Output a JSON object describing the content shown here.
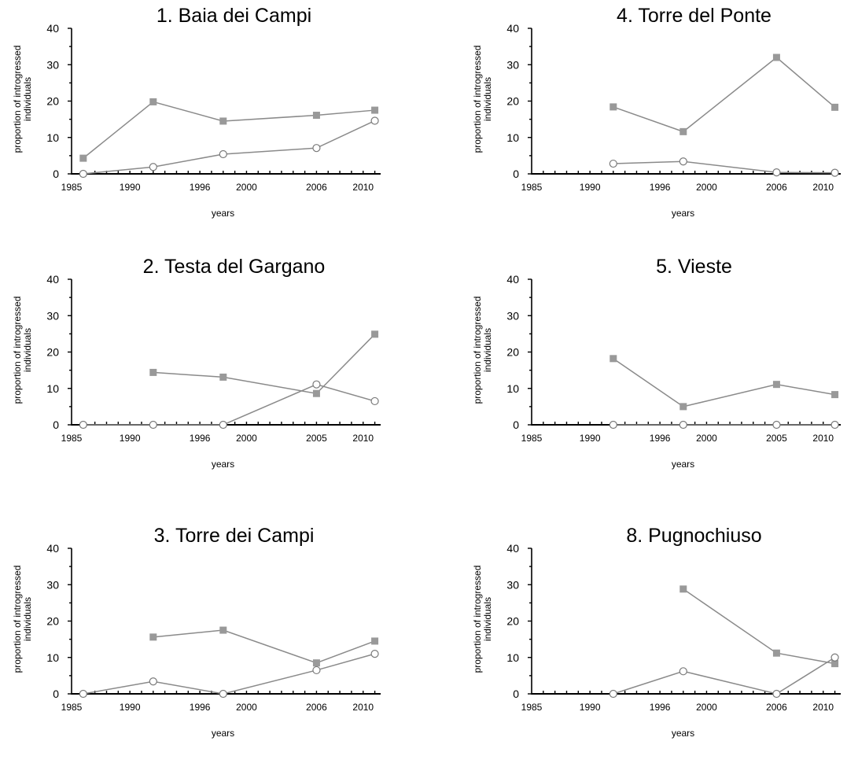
{
  "chart_data": [
    {
      "type": "line",
      "title": "1. Baia dei Campi",
      "xlabel": "years",
      "ylabel": [
        "proportion of introgressed",
        "individuals"
      ],
      "xticks": [
        "1985",
        "1990",
        "1996",
        "2000",
        "2006",
        "2010"
      ],
      "yticks": [
        "0",
        "10",
        "20",
        "30",
        "40"
      ],
      "ylim": [
        0,
        40
      ],
      "series": [
        {
          "marker": "square",
          "color": "#999999",
          "x": [
            1986,
            1992,
            1998,
            2006,
            2011
          ],
          "y": [
            4.3,
            19.8,
            14.5,
            16.1,
            17.5
          ]
        },
        {
          "marker": "circle",
          "color": "#999999",
          "x": [
            1986,
            1992,
            1998,
            2006,
            2011
          ],
          "y": [
            0,
            1.9,
            5.4,
            7.1,
            14.6
          ]
        }
      ]
    },
    {
      "type": "line",
      "title": "4. Torre del Ponte",
      "xlabel": "years",
      "ylabel": [
        "proportion of introgressed",
        "individuals"
      ],
      "xticks": [
        "1985",
        "1990",
        "1996",
        "2000",
        "2006",
        "2010"
      ],
      "yticks": [
        "0",
        "10",
        "20",
        "30",
        "40"
      ],
      "ylim": [
        0,
        40
      ],
      "series": [
        {
          "marker": "square",
          "color": "#999999",
          "x": [
            1992,
            1998,
            2006,
            2011
          ],
          "y": [
            18.4,
            11.6,
            32.0,
            18.3
          ]
        },
        {
          "marker": "circle",
          "color": "#999999",
          "x": [
            1992,
            1998,
            2006,
            2011
          ],
          "y": [
            2.8,
            3.4,
            0.4,
            0.3
          ]
        }
      ]
    },
    {
      "type": "line",
      "title": "2. Testa del Gargano",
      "xlabel": "years",
      "ylabel": [
        "proportion of introgressed",
        "individuals"
      ],
      "xticks": [
        "1985",
        "1990",
        "1996",
        "2000",
        "2005",
        "2010"
      ],
      "yticks": [
        "0",
        "10",
        "20",
        "30",
        "40"
      ],
      "ylim": [
        0,
        40
      ],
      "series": [
        {
          "marker": "square",
          "color": "#999999",
          "x": [
            1992,
            1998,
            2006,
            2011
          ],
          "y": [
            14.4,
            13.1,
            8.6,
            24.9
          ]
        },
        {
          "marker": "circle",
          "color": "#999999",
          "x": [
            1986,
            1992,
            1998,
            2006,
            2011
          ],
          "y": [
            0,
            0,
            0,
            11.1,
            6.5
          ]
        }
      ]
    },
    {
      "type": "line",
      "title": "5. Vieste",
      "xlabel": "years",
      "ylabel": [
        "proportion of introgressed",
        "individuals"
      ],
      "xticks": [
        "1985",
        "1990",
        "1996",
        "2000",
        "2005",
        "2010"
      ],
      "yticks": [
        "0",
        "10",
        "20",
        "30",
        "40"
      ],
      "ylim": [
        0,
        40
      ],
      "series": [
        {
          "marker": "square",
          "color": "#999999",
          "x": [
            1992,
            1998,
            2006,
            2011
          ],
          "y": [
            18.2,
            5.0,
            11.1,
            8.3
          ]
        },
        {
          "marker": "circle",
          "color": "#999999",
          "x": [
            1992,
            1998,
            2006,
            2011
          ],
          "y": [
            0,
            0,
            0,
            0
          ]
        }
      ]
    },
    {
      "type": "line",
      "title": "3. Torre dei Campi",
      "xlabel": "years",
      "ylabel": [
        "proportion of introgressed",
        "individuals"
      ],
      "xticks": [
        "1985",
        "1990",
        "1996",
        "2000",
        "2006",
        "2010"
      ],
      "yticks": [
        "0",
        "10",
        "20",
        "30",
        "40"
      ],
      "ylim": [
        0,
        40
      ],
      "series": [
        {
          "marker": "square",
          "color": "#999999",
          "x": [
            1992,
            1998,
            2006,
            2011
          ],
          "y": [
            15.6,
            17.5,
            8.5,
            14.5
          ]
        },
        {
          "marker": "circle",
          "color": "#999999",
          "x": [
            1986,
            1992,
            1998,
            2006,
            2011
          ],
          "y": [
            0,
            3.4,
            0,
            6.5,
            11.0
          ]
        }
      ]
    },
    {
      "type": "line",
      "title": "8. Pugnochiuso",
      "xlabel": "years",
      "ylabel": [
        "proportion of introgressed",
        "individuals"
      ],
      "xticks": [
        "1985",
        "1990",
        "1996",
        "2000",
        "2006",
        "2010"
      ],
      "yticks": [
        "0",
        "10",
        "20",
        "30",
        "40"
      ],
      "ylim": [
        0,
        40
      ],
      "series": [
        {
          "marker": "square",
          "color": "#999999",
          "x": [
            1998,
            2006,
            2011
          ],
          "y": [
            28.8,
            11.2,
            8.3
          ]
        },
        {
          "marker": "circle",
          "color": "#999999",
          "x": [
            1992,
            1998,
            2006,
            2011
          ],
          "y": [
            0,
            6.2,
            0,
            10.0
          ]
        }
      ]
    }
  ]
}
